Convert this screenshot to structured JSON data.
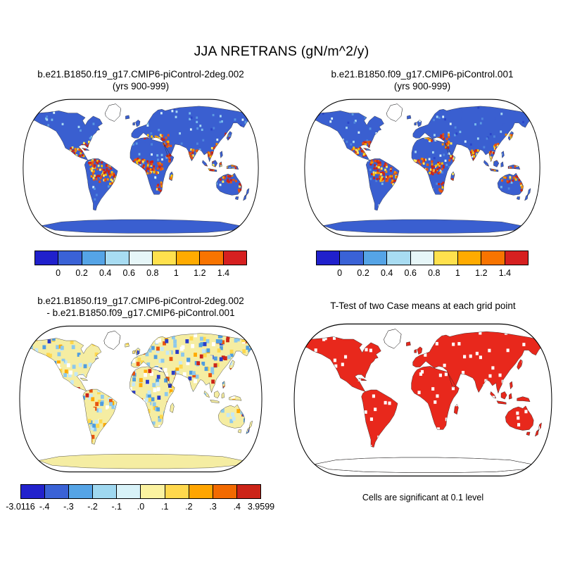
{
  "figure": {
    "title": "JJA NRETRANS (gN/m^2/y)",
    "background": "#ffffff",
    "ocean_color": "#ffffff",
    "coastline_color": "#1a1a1a"
  },
  "panels": {
    "top_left": {
      "title_line1": "b.e21.B1850.f19_g17.CMIP6-piControl-2deg.002",
      "title_line2": "(yrs 900-999)",
      "land_color": "#3a5fd0",
      "texture": {
        "seed": 11,
        "cell": 3,
        "uniform_count": 360,
        "warm": true,
        "uniform_palette": [
          "#5a9ae2",
          "#79bcec",
          "#a6d8f2",
          "#2b45c8",
          "#4f86dc",
          "#d8f2fa",
          "#3a5fd0",
          "#3a5fd0"
        ],
        "warm_palette": [
          "#cc2418",
          "#cc2418",
          "#cc2418",
          "#e8540e",
          "#e8540e",
          "#f59000",
          "#ffc400",
          "#ffe95c"
        ]
      }
    },
    "top_right": {
      "title_line1": "b.e21.B1850.f09_g17.CMIP6-piControl.001",
      "title_line2": "(yrs 900-999)",
      "land_color": "#3a5fd0",
      "texture": {
        "seed": 29,
        "cell": 3,
        "uniform_count": 360,
        "warm": true,
        "uniform_palette": [
          "#5a9ae2",
          "#79bcec",
          "#a6d8f2",
          "#2b45c8",
          "#4f86dc",
          "#d8f2fa",
          "#3a5fd0",
          "#3a5fd0"
        ],
        "warm_palette": [
          "#cc2418",
          "#cc2418",
          "#cc2418",
          "#e8540e",
          "#e8540e",
          "#f59000",
          "#ffc400",
          "#ffe95c"
        ]
      }
    },
    "bottom_left": {
      "title_line1": "b.e21.B1850.f19_g17.CMIP6-piControl-2deg.002",
      "title_line2": "- b.e21.B1850.f09_g17.CMIP6-piControl.001",
      "land_color": "#f5eda2",
      "texture": {
        "seed": 7,
        "cell": 5,
        "uniform_count": 850,
        "warm": false,
        "uniform_palette": [
          "#2a3cc8",
          "#4f9de0",
          "#4f9de0",
          "#8cc8ec",
          "#8cc8ec",
          "#8cc8ec",
          "#c4e8f6",
          "#c4e8f6",
          "#ffffff",
          "#ffd84d",
          "#ffd84d",
          "#ffaa00",
          "#e8540e",
          "#cc2418",
          "#f5eda2",
          "#f5eda2"
        ],
        "warm_palette": []
      }
    },
    "bottom_right": {
      "title": "T-Test of two Case means at each grid point",
      "caption": "Cells are significant at 0.1 level",
      "land_color": "#e8281c",
      "texture": {
        "seed": 13,
        "cell": 4,
        "uniform_count": 170,
        "warm": false,
        "uniform_palette": [
          "#ffffff"
        ],
        "warm_palette": []
      }
    }
  },
  "colorbars": {
    "mean": {
      "tick_labels": [
        "0",
        "0.2",
        "0.4",
        "0.6",
        "0.8",
        "1",
        "1.2",
        "1.4"
      ],
      "colors": [
        "#2020cc",
        "#3a62d6",
        "#55a4e6",
        "#a8dcf2",
        "#e6f6f8",
        "#ffe14d",
        "#ffab00",
        "#f87400",
        "#d62020"
      ]
    },
    "diff": {
      "tick_labels": [
        "-3.0116",
        "-.4",
        "-.3",
        "-.2",
        "-.1",
        ".0",
        ".1",
        ".2",
        ".3",
        ".4",
        "3.9599"
      ],
      "colors": [
        "#2222cc",
        "#3a62d6",
        "#55a4e6",
        "#9fd8f0",
        "#d8f2f8",
        "#fbf2a0",
        "#ffd84d",
        "#ffa500",
        "#f26a00",
        "#cc2418"
      ]
    }
  },
  "chart_data": [
    {
      "type": "heatmap",
      "subtype": "global-map",
      "title": "b.e21.B1850.f19_g17.CMIP6-piControl-2deg.002 (yrs 900-999)",
      "variable": "JJA NRETRANS",
      "units": "gN/m^2/y",
      "projection": "robinson",
      "levels": [
        0,
        0.2,
        0.4,
        0.6,
        0.8,
        1,
        1.2,
        1.4
      ],
      "palette_ref": "mean",
      "legend_position": "bottom",
      "notes": "Gridded land-only values, oceans white; highest values (red/orange) over Amazon, Central America, central Africa, South/Southeast Asia, Indonesia and north Australian coast; low values (blue) over mid and high latitudes; Greenland blank"
    },
    {
      "type": "heatmap",
      "subtype": "global-map",
      "title": "b.e21.B1850.f09_g17.CMIP6-piControl.001 (yrs 900-999)",
      "variable": "JJA NRETRANS",
      "units": "gN/m^2/y",
      "projection": "robinson",
      "levels": [
        0,
        0.2,
        0.4,
        0.6,
        0.8,
        1,
        1.2,
        1.4
      ],
      "palette_ref": "mean",
      "legend_position": "bottom",
      "notes": "Same field for the f09 control case; spatial pattern nearly identical to the 2deg case"
    },
    {
      "type": "heatmap",
      "subtype": "difference-map",
      "title": "b.e21.B1850.f19_g17.CMIP6-piControl-2deg.002 - b.e21.B1850.f09_g17.CMIP6-piControl.001",
      "variable": "JJA NRETRANS difference",
      "units": "gN/m^2/y",
      "projection": "robinson",
      "min": -3.0116,
      "max": 3.9599,
      "levels": [
        -0.4,
        -0.3,
        -0.2,
        -0.1,
        0,
        0.1,
        0.2,
        0.3,
        0.4
      ],
      "palette_ref": "diff",
      "legend_position": "bottom",
      "notes": "Speckled positive/negative differences over land; Antarctica near zero (pale yellow)"
    },
    {
      "type": "heatmap",
      "subtype": "significance-map",
      "title": "T-Test of two Case means at each grid point",
      "caption": "Cells are significant at 0.1 level",
      "projection": "robinson",
      "palette_ref": null,
      "significant_color": "#e8281c",
      "notes": "Most land grid cells shaded red (significant at 0.1 level) with scattered white non-significant cells; Antarctica and interior Greenland unshaded"
    }
  ]
}
